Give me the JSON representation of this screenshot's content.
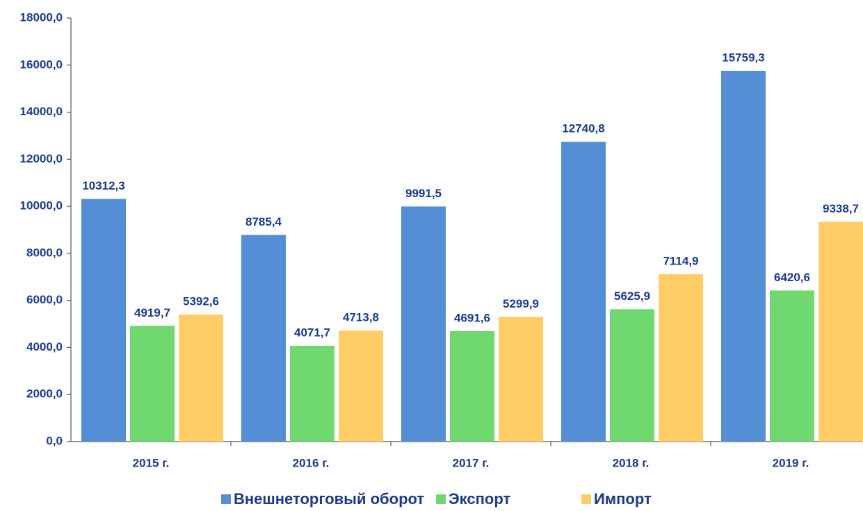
{
  "chart_data": {
    "type": "bar",
    "categories": [
      "2015 г.",
      "2016 г.",
      "2017 г.",
      "2018 г.",
      "2019 г."
    ],
    "series": [
      {
        "name": "Внешнеторговый оборот",
        "color": "#558ed5",
        "values": [
          10312.3,
          8785.4,
          9991.5,
          12740.8,
          15759.3
        ],
        "value_labels": [
          "10312,3",
          "8785,4",
          "9991,5",
          "12740,8",
          "15759,3"
        ]
      },
      {
        "name": "Экспорт",
        "color": "#6fd96f",
        "values": [
          4919.7,
          4071.7,
          4691.6,
          5625.9,
          6420.6
        ],
        "value_labels": [
          "4919,7",
          "4071,7",
          "4691,6",
          "5625,9",
          "6420,6"
        ]
      },
      {
        "name": "Импорт",
        "color": "#ffcc66",
        "values": [
          5392.6,
          4713.8,
          5299.9,
          7114.9,
          9338.7
        ],
        "value_labels": [
          "5392,6",
          "4713,8",
          "5299,9",
          "7114,9",
          "9338,7"
        ]
      }
    ],
    "ylim": [
      0,
      18000
    ],
    "yticks": [
      {
        "value": 0,
        "label": "0,0"
      },
      {
        "value": 2000,
        "label": "2000,0"
      },
      {
        "value": 4000,
        "label": "4000,0"
      },
      {
        "value": 6000,
        "label": "6000,0"
      },
      {
        "value": 8000,
        "label": "8000,0"
      },
      {
        "value": 10000,
        "label": "10000,0"
      },
      {
        "value": 12000,
        "label": "12000,0"
      },
      {
        "value": 14000,
        "label": "14000,0"
      },
      {
        "value": 16000,
        "label": "16000,0"
      },
      {
        "value": 18000,
        "label": "18000,0"
      }
    ],
    "grid": false,
    "legend": "bottom"
  }
}
